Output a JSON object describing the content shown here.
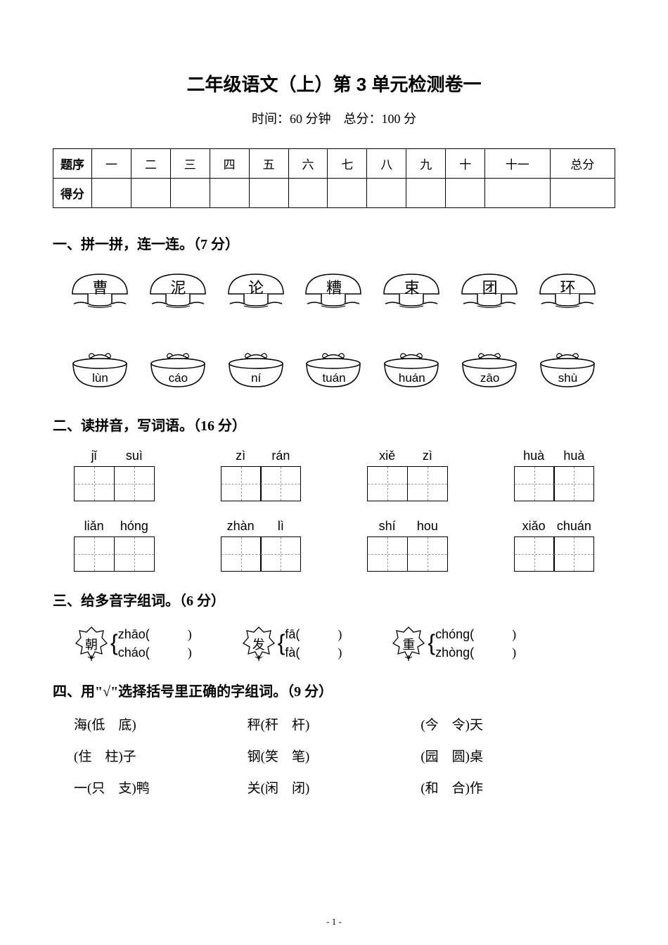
{
  "title": "二年级语文（上）第 3 单元检测卷一",
  "subtitle": "时间：60 分钟　总分：100 分",
  "score_table": {
    "row1_label": "题序",
    "row2_label": "得分",
    "headers": [
      "一",
      "二",
      "三",
      "四",
      "五",
      "六",
      "七",
      "八",
      "九",
      "十",
      "十一",
      "总分"
    ]
  },
  "section1": {
    "title": "一、拼一拼，连一连。（7 分）",
    "mushrooms": [
      "曹",
      "泥",
      "论",
      "糟",
      "束",
      "团",
      "环"
    ],
    "baskets": [
      "lùn",
      "cáo",
      "ní",
      "tuán",
      "huán",
      "zāo",
      "shù"
    ]
  },
  "section2": {
    "title": "二、读拼音，写词语。（16 分）",
    "row1": [
      {
        "p1": "jǐ",
        "p2": "suì"
      },
      {
        "p1": "zì",
        "p2": "rán"
      },
      {
        "p1": "xiě",
        "p2": "zì"
      },
      {
        "p1": "huà",
        "p2": "huà"
      }
    ],
    "row2": [
      {
        "p1": "liǎn",
        "p2": "hóng"
      },
      {
        "p1": "zhàn",
        "p2": "lì"
      },
      {
        "p1": "shí",
        "p2": "hou"
      },
      {
        "p1": "xiǎo",
        "p2": "chuán"
      }
    ]
  },
  "section3": {
    "title": "三、给多音字组词。（6 分）",
    "items": [
      {
        "char": "朝",
        "r1": "zhāo(",
        "r2": "cháo(",
        "close": ")"
      },
      {
        "char": "发",
        "r1": "fā(",
        "r2": "fà(",
        "close": ")"
      },
      {
        "char": "重",
        "r1": "chóng(",
        "r2": "zhòng(",
        "close": ")"
      }
    ]
  },
  "section4": {
    "title": "四、用\"√\"选择括号里正确的字组词。（9 分）",
    "rows": [
      [
        "海(低　底)",
        "秤(秆　杆)",
        "(今　令)天"
      ],
      [
        "(住　柱)子",
        "钢(笑　笔)",
        "(园　圆)桌"
      ],
      [
        "一(只　支)鸭",
        "关(闲　闭)",
        "(和　合)作"
      ]
    ]
  },
  "page_num": "- 1 -"
}
